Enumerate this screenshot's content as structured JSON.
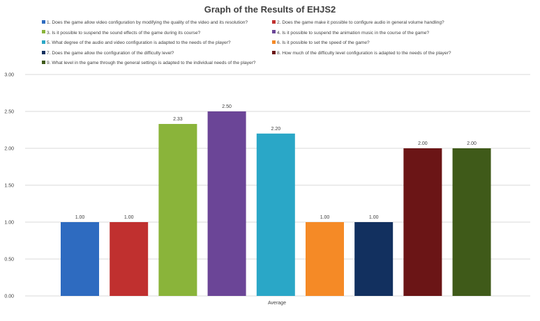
{
  "chart_data": {
    "type": "bar",
    "title": "Graph of the Results of  EHJS2",
    "categories": [
      "Average"
    ],
    "xlabel": "Average",
    "ylim": [
      0,
      3
    ],
    "ytick_labels": [
      "0.00",
      "0.50",
      "1.00",
      "1.50",
      "2.00",
      "2.50",
      "3.00"
    ],
    "grid": true,
    "legend_position": "top",
    "series": [
      {
        "name": "1. Does the game allow video configuration by modifying the quality of the video and its resolution?",
        "values": [
          1.0
        ],
        "label": "1.00",
        "color": "#2e6bc0"
      },
      {
        "name": "2. Does the game make it possible to configure audio in general volume handling?",
        "values": [
          1.0
        ],
        "label": "1.00",
        "color": "#c0302f"
      },
      {
        "name": "3. Is it possible to suspend the sound effects of the game during its course?",
        "values": [
          2.33
        ],
        "label": "2.33",
        "color": "#8ab43a"
      },
      {
        "name": "4. Is it possible to suspend the animation music in the course of the game?",
        "values": [
          2.5
        ],
        "label": "2.50",
        "color": "#6b4597"
      },
      {
        "name": "5. What degree of the audio and video configuration is adapted to the needs of the player?",
        "values": [
          2.2
        ],
        "label": "2.20",
        "color": "#2aa7c7"
      },
      {
        "name": "6. Is it possible to set the speed of the game?",
        "values": [
          1.0
        ],
        "label": "1.00",
        "color": "#f58a26"
      },
      {
        "name": "7. Does the game allow the configuration of the difficulty level?",
        "values": [
          1.0
        ],
        "label": "1.00",
        "color": "#12305f"
      },
      {
        "name": "8. How much of the difficulty level configuration is adapted to the needs of the player?",
        "values": [
          2.0
        ],
        "label": "2.00",
        "color": "#6b1516"
      },
      {
        "name": "9. What level in the game through the general settings is adapted to the individual needs of the player?",
        "values": [
          2.0
        ],
        "label": "2.00",
        "color": "#3f5a19"
      }
    ]
  }
}
